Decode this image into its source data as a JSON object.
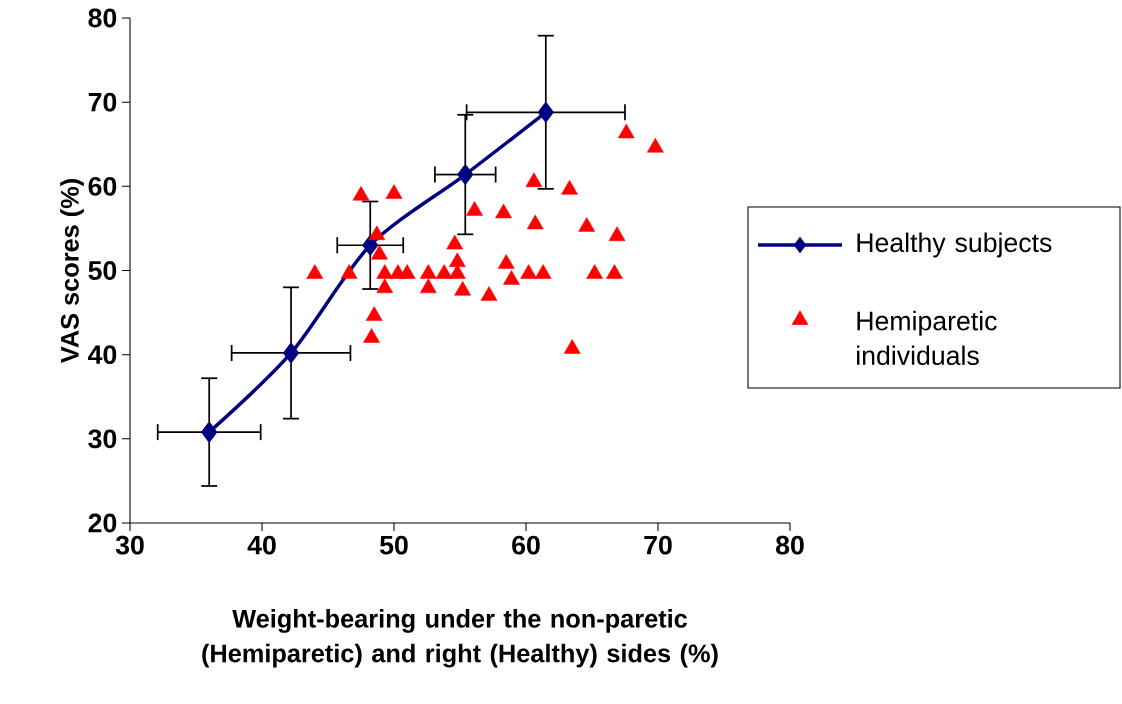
{
  "chart_data": {
    "type": "line",
    "xlabel": "Weight-bearing under the non-paretic (Hemiparetic) and right (Healthy) sides (%)",
    "ylabel": "VAS scores (%)",
    "xlim": [
      30,
      80
    ],
    "ylim": [
      20,
      80
    ],
    "xticks": [
      30,
      40,
      50,
      60,
      70,
      80
    ],
    "yticks": [
      20,
      30,
      40,
      50,
      60,
      70,
      80
    ],
    "grid": false,
    "legend": "right",
    "series": [
      {
        "name": "Healthy subjects",
        "type": "line",
        "color": "#000080",
        "marker": "diamond",
        "line_style": "solid",
        "x": [
          36,
          42.2,
          48.2,
          55.4,
          61.5
        ],
        "values": [
          30.8,
          40.2,
          53,
          61.4,
          68.8
        ],
        "errors": [
          6.4,
          7.8,
          5.2,
          7.1,
          9.1
        ],
        "xerrors": [
          3.9,
          4.5,
          2.5,
          2.3,
          6
        ]
      },
      {
        "name": "Hemiparetic individuals",
        "type": "scatter",
        "color": "#ff0000",
        "marker": "triangle",
        "x": [
          67.6,
          69.8,
          60.6,
          63.3,
          47.5,
          50.0,
          56.1,
          58.3,
          60.7,
          64.6,
          66.9,
          48.7,
          54.6,
          48.9,
          54.8,
          58.5,
          44.0,
          46.6,
          49.3,
          50.3,
          51.0,
          52.6,
          53.8,
          54.8,
          60.2,
          61.3,
          65.2,
          66.7,
          58.9,
          49.3,
          52.6,
          55.2,
          57.2,
          48.5,
          48.3,
          63.5
        ],
        "values": [
          66.3,
          64.6,
          60.5,
          59.6,
          58.9,
          59.1,
          57.1,
          56.8,
          55.5,
          55.2,
          54.1,
          54.2,
          53.1,
          51.9,
          51.0,
          50.8,
          49.6,
          49.6,
          49.6,
          49.6,
          49.6,
          49.6,
          49.6,
          49.6,
          49.6,
          49.6,
          49.6,
          49.6,
          48.9,
          47.9,
          47.9,
          47.6,
          47.0,
          44.6,
          42.0,
          40.7
        ]
      }
    ]
  }
}
